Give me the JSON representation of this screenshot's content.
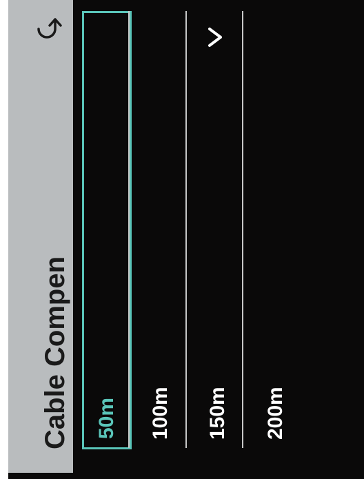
{
  "header": {
    "title": "Cable Compen",
    "back_icon": "undo-arrow-icon"
  },
  "options": [
    {
      "label": "50m",
      "selected": true
    },
    {
      "label": "100m",
      "selected": false
    },
    {
      "label": "150m",
      "selected": false
    },
    {
      "label": "200m",
      "selected": false
    }
  ],
  "more_icon": "chevron-right-icon",
  "colors": {
    "header_bg": "#b9bcbe",
    "list_bg": "#0a0909",
    "accent": "#5ac5b9",
    "text": "#ffffff"
  }
}
